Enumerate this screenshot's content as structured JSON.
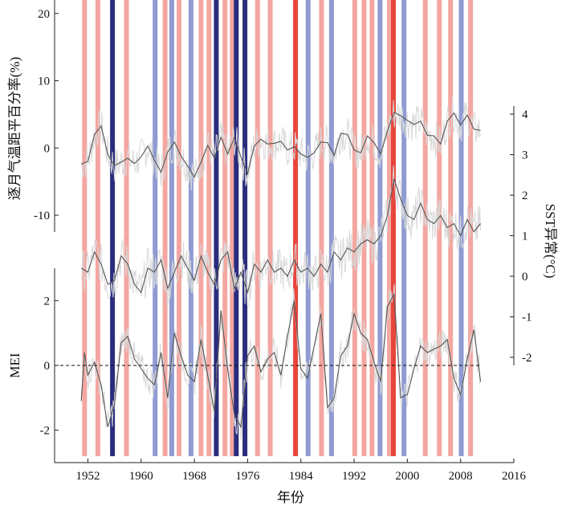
{
  "chart_data": {
    "type": "line",
    "xlabel": "年份",
    "xlim": [
      1947,
      2016
    ],
    "x_ticks": [
      1952,
      1960,
      1968,
      1976,
      1984,
      1992,
      2000,
      2008,
      2016
    ],
    "panels": [
      {
        "name": "temperature",
        "ylabel": "逐月气温距平百分率(%)",
        "axis_side": "left",
        "ylim": [
          -12.5,
          22
        ],
        "y_ticks": [
          -10,
          0,
          10,
          20
        ],
        "series": [
          {
            "points": [
              [
                1951,
                -2.4
              ],
              [
                1952,
                -2.0
              ],
              [
                1953,
                2.0
              ],
              [
                1954,
                3.3
              ],
              [
                1955,
                -1.0
              ],
              [
                1956,
                -2.6
              ],
              [
                1957,
                -2.1
              ],
              [
                1958,
                -1.5
              ],
              [
                1959,
                -2.3
              ],
              [
                1960,
                -1.3
              ],
              [
                1961,
                0.3
              ],
              [
                1962,
                -1.8
              ],
              [
                1963,
                -3.6
              ],
              [
                1964,
                -0.6
              ],
              [
                1965,
                0.9
              ],
              [
                1966,
                -1.2
              ],
              [
                1967,
                -2.7
              ],
              [
                1968,
                -4.3
              ],
              [
                1969,
                -2.1
              ],
              [
                1970,
                0.4
              ],
              [
                1971,
                -1.5
              ],
              [
                1972,
                1.6
              ],
              [
                1973,
                -0.9
              ],
              [
                1974,
                1.5
              ],
              [
                1975,
                -1.3
              ],
              [
                1976,
                -3.8
              ],
              [
                1977,
                0.3
              ],
              [
                1978,
                1.3
              ],
              [
                1979,
                0.6
              ],
              [
                1980,
                0.7
              ],
              [
                1981,
                1.0
              ],
              [
                1982,
                -0.3
              ],
              [
                1983,
                0.2
              ],
              [
                1984,
                -0.9
              ],
              [
                1985,
                -1.4
              ],
              [
                1986,
                -0.7
              ],
              [
                1987,
                0.9
              ],
              [
                1988,
                0.8
              ],
              [
                1989,
                -1.1
              ],
              [
                1990,
                2.2
              ],
              [
                1991,
                2.0
              ],
              [
                1992,
                -0.3
              ],
              [
                1993,
                -0.7
              ],
              [
                1994,
                1.8
              ],
              [
                1995,
                0.8
              ],
              [
                1996,
                -0.9
              ],
              [
                1997,
                2.5
              ],
              [
                1998,
                5.3
              ],
              [
                1999,
                4.8
              ],
              [
                2000,
                4.1
              ],
              [
                2001,
                3.5
              ],
              [
                2002,
                4.0
              ],
              [
                2003,
                1.9
              ],
              [
                2004,
                1.8
              ],
              [
                2005,
                0.6
              ],
              [
                2006,
                4.0
              ],
              [
                2007,
                5.2
              ],
              [
                2008,
                3.4
              ],
              [
                2009,
                4.9
              ],
              [
                2010,
                2.8
              ],
              [
                2011,
                2.6
              ]
            ]
          }
        ]
      },
      {
        "name": "sst",
        "ylabel": "SST异常(°C)",
        "axis_side": "right",
        "ylim": [
          -2.2,
          4.2
        ],
        "y_ticks": [
          -2,
          -1,
          0,
          1,
          2,
          3,
          4
        ],
        "series": [
          {
            "points": [
              [
                1951,
                0.2
              ],
              [
                1952,
                0.1
              ],
              [
                1953,
                0.6
              ],
              [
                1954,
                0.3
              ],
              [
                1955,
                -0.2
              ],
              [
                1956,
                -0.1
              ],
              [
                1957,
                0.5
              ],
              [
                1958,
                0.3
              ],
              [
                1959,
                -0.2
              ],
              [
                1960,
                -0.4
              ],
              [
                1961,
                0.2
              ],
              [
                1962,
                0.1
              ],
              [
                1963,
                0.4
              ],
              [
                1964,
                -0.3
              ],
              [
                1965,
                0.1
              ],
              [
                1966,
                0.5
              ],
              [
                1967,
                0.2
              ],
              [
                1968,
                -0.1
              ],
              [
                1969,
                0.5
              ],
              [
                1970,
                0.1
              ],
              [
                1971,
                -0.2
              ],
              [
                1972,
                0.4
              ],
              [
                1973,
                0.6
              ],
              [
                1974,
                -0.3
              ],
              [
                1975,
                0.1
              ],
              [
                1976,
                -0.4
              ],
              [
                1977,
                0.3
              ],
              [
                1978,
                0.1
              ],
              [
                1979,
                0.4
              ],
              [
                1980,
                0.1
              ],
              [
                1981,
                0.2
              ],
              [
                1982,
                0.0
              ],
              [
                1983,
                0.4
              ],
              [
                1984,
                0.1
              ],
              [
                1985,
                0.2
              ],
              [
                1986,
                0.0
              ],
              [
                1987,
                0.3
              ],
              [
                1988,
                0.1
              ],
              [
                1989,
                0.6
              ],
              [
                1990,
                0.4
              ],
              [
                1991,
                0.7
              ],
              [
                1992,
                0.6
              ],
              [
                1993,
                0.8
              ],
              [
                1994,
                0.9
              ],
              [
                1995,
                0.8
              ],
              [
                1996,
                1.0
              ],
              [
                1997,
                1.5
              ],
              [
                1998,
                2.4
              ],
              [
                1999,
                1.9
              ],
              [
                2000,
                1.5
              ],
              [
                2001,
                1.4
              ],
              [
                2002,
                1.8
              ],
              [
                2003,
                1.4
              ],
              [
                2004,
                1.3
              ],
              [
                2005,
                1.5
              ],
              [
                2006,
                1.2
              ],
              [
                2007,
                1.3
              ],
              [
                2008,
                1.0
              ],
              [
                2009,
                1.4
              ],
              [
                2010,
                1.1
              ],
              [
                2011,
                1.3
              ]
            ]
          }
        ]
      },
      {
        "name": "mei",
        "ylabel": "MEI",
        "axis_side": "left",
        "ylim": [
          -3,
          3
        ],
        "y_ticks": [
          -2,
          0,
          2
        ],
        "zero_line": true,
        "series": [
          {
            "points": [
              [
                1951,
                -1.1
              ],
              [
                1951.5,
                0.4
              ],
              [
                1952,
                -0.3
              ],
              [
                1953,
                0.1
              ],
              [
                1954,
                -0.6
              ],
              [
                1955,
                -1.9
              ],
              [
                1956,
                -1.2
              ],
              [
                1957,
                0.7
              ],
              [
                1958,
                0.9
              ],
              [
                1959,
                0.2
              ],
              [
                1960,
                -0.1
              ],
              [
                1961,
                -0.4
              ],
              [
                1962,
                -0.6
              ],
              [
                1963,
                0.4
              ],
              [
                1964,
                -1.0
              ],
              [
                1965,
                1.0
              ],
              [
                1966,
                0.3
              ],
              [
                1967,
                -0.3
              ],
              [
                1968,
                -0.5
              ],
              [
                1969,
                0.8
              ],
              [
                1970,
                -0.3
              ],
              [
                1971,
                -1.4
              ],
              [
                1972,
                1.7
              ],
              [
                1973,
                -0.1
              ],
              [
                1974,
                -1.5
              ],
              [
                1975,
                -1.9
              ],
              [
                1976,
                0.3
              ],
              [
                1977,
                0.6
              ],
              [
                1978,
                -0.2
              ],
              [
                1979,
                0.2
              ],
              [
                1980,
                0.4
              ],
              [
                1981,
                -0.3
              ],
              [
                1982,
                0.9
              ],
              [
                1983,
                2.0
              ],
              [
                1984,
                -0.1
              ],
              [
                1985,
                -0.4
              ],
              [
                1986,
                0.6
              ],
              [
                1987,
                1.6
              ],
              [
                1988,
                -1.3
              ],
              [
                1989,
                -1.0
              ],
              [
                1990,
                0.3
              ],
              [
                1991,
                0.6
              ],
              [
                1992,
                1.6
              ],
              [
                1993,
                1.0
              ],
              [
                1994,
                0.8
              ],
              [
                1995,
                0.1
              ],
              [
                1996,
                -0.5
              ],
              [
                1997,
                1.8
              ],
              [
                1998,
                2.2
              ],
              [
                1999,
                -1.0
              ],
              [
                2000,
                -0.9
              ],
              [
                2001,
                -0.1
              ],
              [
                2002,
                0.6
              ],
              [
                2003,
                0.4
              ],
              [
                2004,
                0.5
              ],
              [
                2005,
                0.6
              ],
              [
                2006,
                0.8
              ],
              [
                2007,
                -0.4
              ],
              [
                2008,
                -0.9
              ],
              [
                2009,
                0.2
              ],
              [
                2010,
                1.1
              ],
              [
                2011,
                -0.5
              ]
            ]
          }
        ]
      }
    ],
    "event_bars": [
      {
        "year": 1951.5,
        "kind": "pink"
      },
      {
        "year": 1953.5,
        "kind": "pink"
      },
      {
        "year": 1955.7,
        "kind": "dark-blue"
      },
      {
        "year": 1957.8,
        "kind": "pink"
      },
      {
        "year": 1962.1,
        "kind": "light-blue"
      },
      {
        "year": 1963.6,
        "kind": "pink"
      },
      {
        "year": 1964.6,
        "kind": "light-blue"
      },
      {
        "year": 1965.7,
        "kind": "pink"
      },
      {
        "year": 1967.5,
        "kind": "light-blue"
      },
      {
        "year": 1969.0,
        "kind": "pink"
      },
      {
        "year": 1970.2,
        "kind": "pink"
      },
      {
        "year": 1971.3,
        "kind": "dark-blue"
      },
      {
        "year": 1972.6,
        "kind": "pink"
      },
      {
        "year": 1973.7,
        "kind": "pink"
      },
      {
        "year": 1974.3,
        "kind": "dark-blue"
      },
      {
        "year": 1975.6,
        "kind": "dark-blue"
      },
      {
        "year": 1977.5,
        "kind": "pink"
      },
      {
        "year": 1979.4,
        "kind": "pink"
      },
      {
        "year": 1983.2,
        "kind": "red"
      },
      {
        "year": 1985.1,
        "kind": "light-blue"
      },
      {
        "year": 1987.1,
        "kind": "pink"
      },
      {
        "year": 1988.6,
        "kind": "light-blue"
      },
      {
        "year": 1992.1,
        "kind": "pink"
      },
      {
        "year": 1993.5,
        "kind": "pink"
      },
      {
        "year": 1994.7,
        "kind": "pink"
      },
      {
        "year": 1995.9,
        "kind": "light-blue"
      },
      {
        "year": 1997.3,
        "kind": "pink"
      },
      {
        "year": 1997.9,
        "kind": "red"
      },
      {
        "year": 1999.5,
        "kind": "light-blue"
      },
      {
        "year": 2002.7,
        "kind": "pink"
      },
      {
        "year": 2004.8,
        "kind": "pink"
      },
      {
        "year": 2006.5,
        "kind": "pink"
      },
      {
        "year": 2008.1,
        "kind": "light-blue"
      },
      {
        "year": 2009.5,
        "kind": "pink"
      }
    ],
    "colors": {
      "pink": "#f4a6a0",
      "red": "#e8453c",
      "light-blue": "#8f9bd2",
      "dark-blue": "#2a2c7d",
      "line": "#555555",
      "noise": "#d8d8d8"
    }
  }
}
